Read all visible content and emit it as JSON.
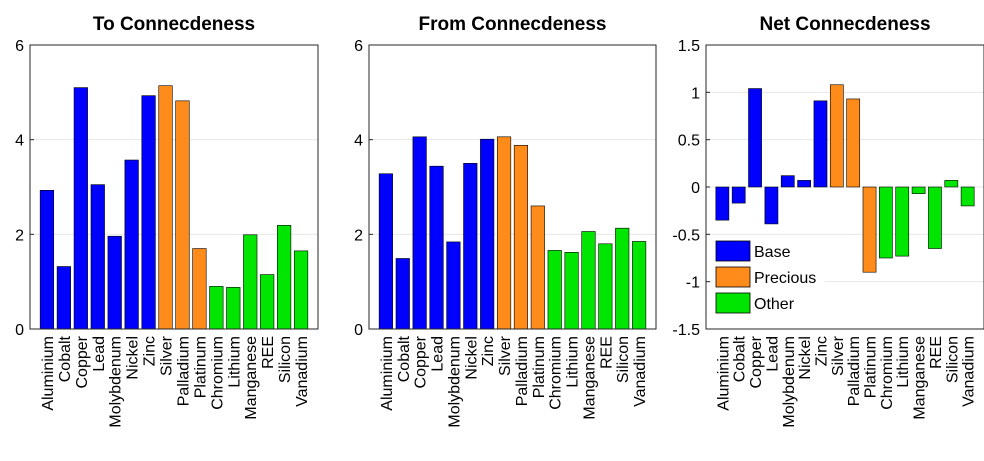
{
  "chart_data": [
    {
      "type": "bar",
      "title": "To Connecdeness",
      "categories": [
        "Aluminium",
        "Cobalt",
        "Copper",
        "Lead",
        "Molybdenum",
        "Nickel",
        "Zinc",
        "Silver",
        "Palladium",
        "Platinum",
        "Chromium",
        "Lithium",
        "Manganese",
        "REE",
        "Silicon",
        "Vanadium"
      ],
      "values": [
        2.93,
        1.32,
        5.1,
        3.05,
        1.96,
        3.57,
        4.93,
        5.14,
        4.82,
        1.7,
        0.9,
        0.88,
        1.99,
        1.15,
        2.19,
        1.65
      ],
      "groups": [
        "Base",
        "Base",
        "Base",
        "Base",
        "Base",
        "Base",
        "Base",
        "Precious",
        "Precious",
        "Precious",
        "Other",
        "Other",
        "Other",
        "Other",
        "Other",
        "Other"
      ],
      "ylim": [
        0,
        6
      ],
      "yticks": [
        "0",
        "2",
        "4",
        "6"
      ],
      "ytick_values": [
        0,
        2,
        4,
        6
      ],
      "grid": "horizontal"
    },
    {
      "type": "bar",
      "title": "From Connecdeness",
      "categories": [
        "Aluminium",
        "Cobalt",
        "Copper",
        "Lead",
        "Molybdenum",
        "Nickel",
        "Zinc",
        "Silver",
        "Palladium",
        "Platinum",
        "Chromium",
        "Lithium",
        "Manganese",
        "REE",
        "Silicon",
        "Vanadium"
      ],
      "values": [
        3.28,
        1.49,
        4.06,
        3.44,
        1.84,
        3.5,
        4.01,
        4.06,
        3.88,
        2.6,
        1.66,
        1.62,
        2.06,
        1.8,
        2.13,
        1.85
      ],
      "groups": [
        "Base",
        "Base",
        "Base",
        "Base",
        "Base",
        "Base",
        "Base",
        "Precious",
        "Precious",
        "Precious",
        "Other",
        "Other",
        "Other",
        "Other",
        "Other",
        "Other"
      ],
      "ylim": [
        0,
        6
      ],
      "yticks": [
        "0",
        "2",
        "4",
        "6"
      ],
      "ytick_values": [
        0,
        2,
        4,
        6
      ],
      "grid": "horizontal"
    },
    {
      "type": "bar",
      "title": "Net Connecdeness",
      "categories": [
        "Aluminium",
        "Cobalt",
        "Copper",
        "Lead",
        "Molybdenum",
        "Nickel",
        "Zinc",
        "Silver",
        "Palladium",
        "Platinum",
        "Chromium",
        "Lithium",
        "Manganese",
        "REE",
        "Silicon",
        "Vanadium"
      ],
      "values": [
        -0.35,
        -0.17,
        1.04,
        -0.39,
        0.12,
        0.07,
        0.91,
        1.08,
        0.93,
        -0.9,
        -0.75,
        -0.73,
        -0.07,
        -0.65,
        0.07,
        -0.2
      ],
      "groups": [
        "Base",
        "Base",
        "Base",
        "Base",
        "Base",
        "Base",
        "Base",
        "Precious",
        "Precious",
        "Precious",
        "Other",
        "Other",
        "Other",
        "Other",
        "Other",
        "Other"
      ],
      "ylim": [
        -1.5,
        1.5
      ],
      "yticks": [
        "-1.5",
        "-1",
        "-0.5",
        "0",
        "0.5",
        "1",
        "1.5"
      ],
      "ytick_values": [
        -1.5,
        -1,
        -0.5,
        0,
        0.5,
        1,
        1.5
      ],
      "grid": "horizontal",
      "legend": {
        "placement": "bottom-left",
        "entries": [
          {
            "group": "Base",
            "label": "Base"
          },
          {
            "group": "Precious",
            "label": "Precious"
          },
          {
            "group": "Other",
            "label": "Other"
          }
        ]
      }
    }
  ],
  "colors": {
    "Base": "#0000ff",
    "Precious": "#ff8c1a",
    "Other": "#00e600",
    "grid": "#e6e6e6",
    "axis": "#262626"
  }
}
